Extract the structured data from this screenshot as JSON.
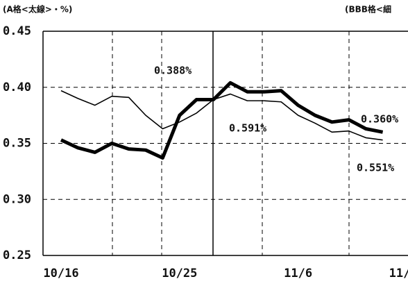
{
  "chart_data": {
    "type": "line",
    "y_label": "(A格<太線>・%)",
    "y2_label": "(BBB格<細",
    "categories": [
      "10/16",
      null,
      null,
      null,
      null,
      null,
      null,
      "10/25",
      null,
      null,
      null,
      null,
      null,
      null,
      "11/6",
      null,
      null,
      null,
      null,
      null,
      "11/"
    ],
    "series": [
      {
        "name": "A格",
        "color": "#000000",
        "width": "thick",
        "values": [
          0.353,
          0.346,
          0.342,
          0.35,
          0.345,
          0.344,
          0.337,
          0.375,
          0.389,
          0.389,
          0.404,
          0.396,
          0.396,
          0.397,
          0.384,
          0.375,
          0.369,
          0.371,
          0.363,
          0.36,
          null
        ]
      },
      {
        "name": "BBB格",
        "color": "#000000",
        "width": "thin",
        "values": [
          0.397,
          0.39,
          0.384,
          0.392,
          0.391,
          0.375,
          0.363,
          0.369,
          0.377,
          0.389,
          0.394,
          0.388,
          0.388,
          0.387,
          0.375,
          0.368,
          0.36,
          0.361,
          0.355,
          0.353,
          null
        ]
      }
    ],
    "annotations": [
      "0.388%",
      "0.591%",
      "0.360%",
      "0.551%"
    ],
    "ylim": [
      0.25,
      0.45
    ],
    "yticks": [
      {
        "value": 0.25,
        "label": "0.25"
      },
      {
        "value": 0.3,
        "label": "0.30"
      },
      {
        "value": 0.35,
        "label": "0.35"
      },
      {
        "value": 0.4,
        "label": "0.40"
      },
      {
        "value": 0.45,
        "label": "0.45"
      }
    ],
    "grid": true
  }
}
